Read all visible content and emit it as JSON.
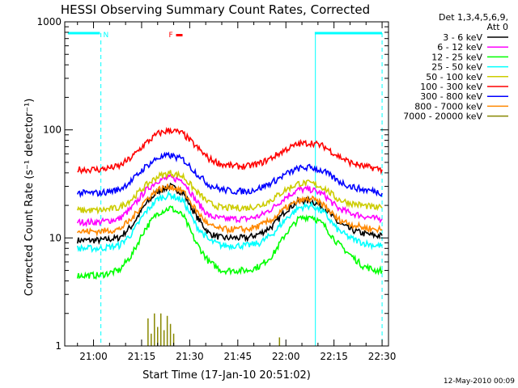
{
  "chart_data": {
    "type": "line",
    "title": "HESSI Observing Summary Count Rates, Corrected",
    "xlabel": "Start Time (17-Jan-10 20:51:02)",
    "ylabel": "Corrected Count Rate (s⁻¹ detector⁻¹)",
    "x_ticks": [
      "21:00",
      "21:15",
      "21:30",
      "21:45",
      "22:00",
      "22:15",
      "22:30"
    ],
    "x_tick_minutes": [
      60,
      75,
      90,
      105,
      120,
      135,
      150
    ],
    "xlim_minutes": [
      51.03,
      152
    ],
    "y_ticks": [
      "1",
      "10",
      "100",
      "1000"
    ],
    "y_tick_values": [
      1,
      10,
      100,
      1000
    ],
    "ylim": [
      1,
      1000
    ],
    "y_scale": "log",
    "legend_title": [
      "Det 1,3,4,5,6,9,",
      "Att 0"
    ],
    "legend_position": "right",
    "series": [
      {
        "name": "3 - 6 keV",
        "color": "#000000",
        "x": [
          55,
          62,
          68,
          72,
          76,
          80,
          84,
          88,
          92,
          96,
          100,
          104,
          108,
          112,
          116,
          120,
          124,
          128,
          132,
          136,
          140,
          144,
          148,
          150
        ],
        "y": [
          9.5,
          9.5,
          10,
          13,
          20,
          27,
          30,
          26,
          16,
          11,
          10,
          10,
          10,
          11,
          13,
          18,
          22,
          22,
          19,
          14,
          12,
          11,
          10.5,
          10.5
        ]
      },
      {
        "name": "6 - 12 keV",
        "color": "#ff00ff",
        "x": [
          55,
          62,
          68,
          72,
          76,
          80,
          84,
          88,
          92,
          96,
          100,
          104,
          108,
          112,
          116,
          120,
          124,
          128,
          132,
          136,
          140,
          144,
          148,
          150
        ],
        "y": [
          14,
          14,
          15,
          19,
          27,
          34,
          36,
          34,
          22,
          16,
          15,
          15,
          15,
          16,
          19,
          24,
          28,
          28,
          25,
          19,
          17,
          16,
          15,
          15
        ]
      },
      {
        "name": "12 - 25 keV",
        "color": "#00ff00",
        "x": [
          55,
          62,
          68,
          72,
          76,
          80,
          84,
          88,
          92,
          96,
          100,
          104,
          108,
          112,
          116,
          120,
          124,
          128,
          132,
          136,
          140,
          144,
          148,
          150
        ],
        "y": [
          4.5,
          4.5,
          5,
          7,
          12,
          17,
          19,
          16,
          9,
          6,
          5,
          5,
          5,
          5.5,
          7,
          11,
          15,
          16,
          13,
          9,
          7,
          5.5,
          5,
          5
        ]
      },
      {
        "name": "25 - 50 keV",
        "color": "#00ffff",
        "x": [
          55,
          62,
          68,
          72,
          76,
          80,
          84,
          88,
          92,
          96,
          100,
          104,
          108,
          112,
          116,
          120,
          124,
          128,
          132,
          136,
          140,
          144,
          148,
          150
        ],
        "y": [
          8,
          8,
          8.5,
          11,
          17,
          23,
          25,
          22,
          13,
          9.5,
          8.5,
          8.5,
          8.5,
          9,
          11,
          15,
          19,
          20,
          17,
          12,
          10,
          9,
          8.5,
          8.5
        ]
      },
      {
        "name": "50 - 100 keV",
        "color": "#cccc00",
        "x": [
          55,
          62,
          68,
          72,
          76,
          80,
          84,
          88,
          92,
          96,
          100,
          104,
          108,
          112,
          116,
          120,
          124,
          128,
          132,
          136,
          140,
          144,
          148,
          150
        ],
        "y": [
          18,
          18,
          19,
          23,
          30,
          37,
          40,
          37,
          27,
          21,
          19,
          19,
          19,
          20,
          23,
          28,
          32,
          32,
          29,
          23,
          21,
          20,
          19,
          19
        ]
      },
      {
        "name": "100 - 300 keV",
        "color": "#ff0000",
        "x": [
          55,
          62,
          68,
          72,
          76,
          80,
          84,
          88,
          92,
          96,
          100,
          104,
          108,
          112,
          116,
          120,
          124,
          128,
          132,
          136,
          140,
          144,
          148,
          150
        ],
        "y": [
          43,
          43,
          46,
          56,
          74,
          92,
          100,
          92,
          70,
          54,
          48,
          46,
          46,
          49,
          56,
          66,
          74,
          76,
          70,
          58,
          50,
          46,
          44,
          43
        ]
      },
      {
        "name": "300 - 800 keV",
        "color": "#0000ff",
        "x": [
          55,
          62,
          68,
          72,
          76,
          80,
          84,
          88,
          92,
          96,
          100,
          104,
          108,
          112,
          116,
          120,
          124,
          128,
          132,
          136,
          140,
          144,
          148,
          150
        ],
        "y": [
          26,
          26,
          28,
          34,
          45,
          55,
          58,
          53,
          40,
          31,
          28,
          27,
          27,
          29,
          33,
          39,
          44,
          45,
          41,
          34,
          30,
          28,
          27,
          26
        ]
      },
      {
        "name": "800 - 7000 keV",
        "color": "#ff8800",
        "x": [
          55,
          62,
          68,
          72,
          76,
          80,
          84,
          88,
          92,
          96,
          100,
          104,
          108,
          112,
          116,
          120,
          124,
          128,
          132,
          136,
          140,
          144,
          148,
          150
        ],
        "y": [
          11.5,
          11.5,
          12,
          15,
          22,
          28,
          30,
          27,
          18,
          13,
          12,
          12,
          12,
          13,
          15,
          19,
          22,
          23,
          20,
          15,
          13.5,
          12.5,
          12,
          12
        ]
      },
      {
        "name": "7000 - 20000 keV",
        "color": "#888800",
        "x": [
          77,
          78,
          79,
          80,
          81,
          82,
          83,
          84,
          85,
          118
        ],
        "y": [
          1.8,
          1.3,
          2.0,
          1.5,
          2.0,
          1.4,
          1.9,
          1.6,
          1.3,
          1.2
        ]
      }
    ],
    "annotations": [
      {
        "label": "N",
        "color": "#00ffff",
        "x_start": 52,
        "x_end": 62
      },
      {
        "label": "F",
        "color": "#ff0000",
        "x_at": 86.5
      }
    ],
    "attenuator_intervals": [
      [
        52,
        62
      ],
      [
        129,
        150
      ]
    ],
    "dashed_lines_minutes": [
      62.3,
      150
    ],
    "solid_line_minutes": 129.2
  },
  "footer": {
    "timestamp": "12-May-2010 00:09"
  }
}
